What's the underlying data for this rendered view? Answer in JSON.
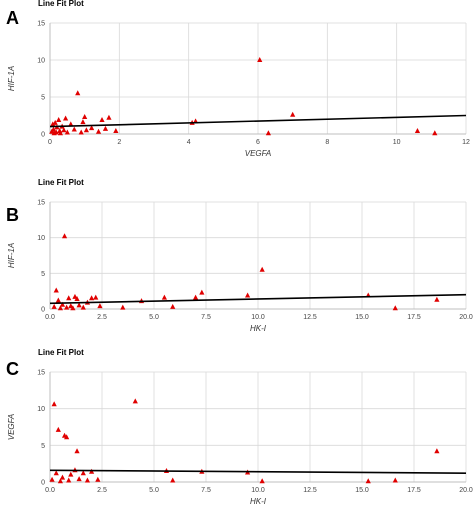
{
  "colors": {
    "points": "#e00000",
    "fit_line": "#000000",
    "grid": "#d9d9d9"
  },
  "chart_data": [
    {
      "panel": "A",
      "type": "scatter",
      "title": "Line Fit Plot",
      "xlabel": "VEGFA",
      "ylabel": "HIF-1A",
      "xlim": [
        0,
        12
      ],
      "ylim": [
        0,
        15
      ],
      "x_ticks": [
        0,
        2,
        4,
        6,
        8,
        10,
        12
      ],
      "y_ticks": [
        0,
        5,
        10,
        15
      ],
      "x_tick_labels": [
        "0",
        "2",
        "4",
        "6",
        "8",
        "10",
        "12"
      ],
      "y_tick_labels": [
        "0",
        "5",
        "10",
        "15"
      ],
      "fit_line": [
        [
          0,
          1.0
        ],
        [
          12,
          2.5
        ]
      ],
      "points": [
        [
          0.05,
          0.3
        ],
        [
          0.08,
          1.3
        ],
        [
          0.1,
          0.6
        ],
        [
          0.12,
          0.1
        ],
        [
          0.15,
          1.5
        ],
        [
          0.18,
          0.2
        ],
        [
          0.2,
          0.9
        ],
        [
          0.25,
          1.9
        ],
        [
          0.28,
          0.4
        ],
        [
          0.3,
          0.1
        ],
        [
          0.35,
          1.0
        ],
        [
          0.4,
          0.5
        ],
        [
          0.45,
          2.1
        ],
        [
          0.5,
          0.2
        ],
        [
          0.6,
          1.3
        ],
        [
          0.7,
          0.6
        ],
        [
          0.8,
          5.5
        ],
        [
          0.9,
          0.2
        ],
        [
          0.95,
          1.6
        ],
        [
          1.0,
          2.3
        ],
        [
          1.05,
          0.5
        ],
        [
          1.2,
          0.8
        ],
        [
          1.4,
          0.3
        ],
        [
          1.5,
          1.9
        ],
        [
          1.6,
          0.7
        ],
        [
          1.7,
          2.2
        ],
        [
          1.9,
          0.4
        ],
        [
          4.1,
          1.5
        ],
        [
          4.2,
          1.7
        ],
        [
          6.05,
          10.0
        ],
        [
          6.3,
          0.1
        ],
        [
          7.0,
          2.6
        ],
        [
          10.6,
          0.4
        ],
        [
          11.1,
          0.1
        ]
      ]
    },
    {
      "panel": "B",
      "type": "scatter",
      "title": "Line Fit Plot",
      "xlabel": "HK-I",
      "ylabel": "HIF-1A",
      "xlim": [
        0,
        20
      ],
      "ylim": [
        0,
        15
      ],
      "x_ticks": [
        0,
        2.5,
        5,
        7.5,
        10,
        12.5,
        15,
        17.5,
        20
      ],
      "y_ticks": [
        0,
        5,
        10,
        15
      ],
      "x_tick_labels": [
        "0.0",
        "2.5",
        "5.0",
        "7.5",
        "10.0",
        "12.5",
        "15.0",
        "17.5",
        "20.0"
      ],
      "y_tick_labels": [
        "0",
        "5",
        "10",
        "15"
      ],
      "fit_line": [
        [
          0,
          0.8
        ],
        [
          20,
          2.0
        ]
      ],
      "points": [
        [
          0.2,
          0.3
        ],
        [
          0.3,
          2.6
        ],
        [
          0.4,
          1.2
        ],
        [
          0.5,
          0.1
        ],
        [
          0.6,
          0.6
        ],
        [
          0.7,
          10.2
        ],
        [
          0.8,
          0.2
        ],
        [
          0.9,
          1.5
        ],
        [
          1.0,
          0.4
        ],
        [
          1.1,
          0.1
        ],
        [
          1.2,
          1.7
        ],
        [
          1.3,
          1.4
        ],
        [
          1.4,
          0.5
        ],
        [
          1.6,
          0.2
        ],
        [
          1.8,
          0.9
        ],
        [
          2.0,
          1.5
        ],
        [
          2.2,
          1.6
        ],
        [
          2.4,
          0.4
        ],
        [
          3.5,
          0.2
        ],
        [
          4.4,
          1.1
        ],
        [
          5.5,
          1.6
        ],
        [
          5.9,
          0.3
        ],
        [
          7.0,
          1.6
        ],
        [
          7.3,
          2.3
        ],
        [
          9.5,
          1.9
        ],
        [
          10.2,
          5.5
        ],
        [
          15.3,
          1.9
        ],
        [
          16.6,
          0.1
        ],
        [
          18.6,
          1.3
        ]
      ]
    },
    {
      "panel": "C",
      "type": "scatter",
      "title": "Line Fit Plot",
      "xlabel": "HK-I",
      "ylabel": "VEGFA",
      "xlim": [
        0,
        20
      ],
      "ylim": [
        0,
        15
      ],
      "x_ticks": [
        0,
        2.5,
        5,
        7.5,
        10,
        12.5,
        15,
        17.5,
        20
      ],
      "y_ticks": [
        0,
        5,
        10,
        15
      ],
      "x_tick_labels": [
        "0.0",
        "2.5",
        "5.0",
        "7.5",
        "10.0",
        "12.5",
        "15.0",
        "17.5",
        "20.0"
      ],
      "y_tick_labels": [
        "0",
        "5",
        "10",
        "15"
      ],
      "fit_line": [
        [
          0,
          1.6
        ],
        [
          20,
          1.2
        ]
      ],
      "points": [
        [
          0.1,
          0.3
        ],
        [
          0.2,
          10.6
        ],
        [
          0.3,
          1.2
        ],
        [
          0.4,
          7.1
        ],
        [
          0.5,
          0.1
        ],
        [
          0.6,
          0.6
        ],
        [
          0.7,
          6.3
        ],
        [
          0.8,
          6.1
        ],
        [
          0.9,
          0.2
        ],
        [
          1.0,
          1.0
        ],
        [
          1.2,
          1.6
        ],
        [
          1.3,
          4.2
        ],
        [
          1.4,
          0.4
        ],
        [
          1.6,
          1.2
        ],
        [
          1.8,
          0.2
        ],
        [
          2.0,
          1.4
        ],
        [
          2.3,
          0.3
        ],
        [
          4.1,
          11.0
        ],
        [
          5.6,
          1.5
        ],
        [
          5.9,
          0.2
        ],
        [
          7.3,
          1.4
        ],
        [
          9.5,
          1.3
        ],
        [
          10.2,
          0.1
        ],
        [
          15.3,
          0.1
        ],
        [
          16.6,
          0.2
        ],
        [
          18.6,
          4.2
        ]
      ]
    }
  ]
}
